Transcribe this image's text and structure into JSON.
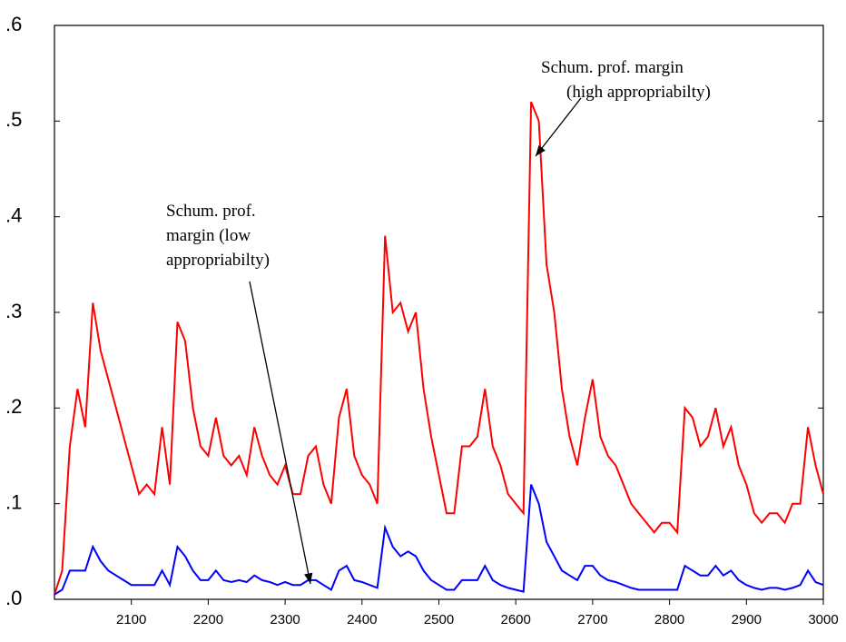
{
  "chart_data": {
    "type": "line",
    "x": [
      2000,
      2010,
      2020,
      2030,
      2040,
      2050,
      2060,
      2070,
      2080,
      2090,
      2100,
      2110,
      2120,
      2130,
      2140,
      2150,
      2160,
      2170,
      2180,
      2190,
      2200,
      2210,
      2220,
      2230,
      2240,
      2250,
      2260,
      2270,
      2280,
      2290,
      2300,
      2310,
      2320,
      2330,
      2340,
      2350,
      2360,
      2370,
      2380,
      2390,
      2400,
      2410,
      2420,
      2430,
      2440,
      2450,
      2460,
      2470,
      2480,
      2490,
      2500,
      2510,
      2520,
      2530,
      2540,
      2550,
      2560,
      2570,
      2580,
      2590,
      2600,
      2610,
      2620,
      2630,
      2640,
      2650,
      2660,
      2670,
      2680,
      2690,
      2700,
      2710,
      2720,
      2730,
      2740,
      2750,
      2760,
      2770,
      2780,
      2790,
      2800,
      2810,
      2820,
      2830,
      2840,
      2850,
      2860,
      2870,
      2880,
      2890,
      2900,
      2910,
      2920,
      2930,
      2940,
      2950,
      2960,
      2970,
      2980,
      2990,
      3000
    ],
    "series": [
      {
        "color": "#ff0000",
        "values": [
          0.005,
          0.03,
          0.16,
          0.22,
          0.18,
          0.31,
          0.26,
          0.23,
          0.2,
          0.17,
          0.14,
          0.11,
          0.12,
          0.11,
          0.18,
          0.12,
          0.29,
          0.27,
          0.2,
          0.16,
          0.15,
          0.19,
          0.15,
          0.14,
          0.15,
          0.13,
          0.18,
          0.15,
          0.13,
          0.12,
          0.14,
          0.11,
          0.11,
          0.15,
          0.16,
          0.12,
          0.1,
          0.19,
          0.22,
          0.15,
          0.13,
          0.12,
          0.1,
          0.38,
          0.3,
          0.31,
          0.28,
          0.3,
          0.22,
          0.17,
          0.13,
          0.09,
          0.09,
          0.16,
          0.16,
          0.17,
          0.22,
          0.16,
          0.14,
          0.11,
          0.1,
          0.09,
          0.52,
          0.5,
          0.35,
          0.3,
          0.22,
          0.17,
          0.14,
          0.19,
          0.23,
          0.17,
          0.15,
          0.14,
          0.12,
          0.1,
          0.09,
          0.08,
          0.07,
          0.08,
          0.08,
          0.07,
          0.2,
          0.19,
          0.16,
          0.17,
          0.2,
          0.16,
          0.18,
          0.14,
          0.12,
          0.09,
          0.08,
          0.09,
          0.09,
          0.08,
          0.1,
          0.1,
          0.18,
          0.14,
          0.11
        ]
      },
      {
        "color": "#0000ff",
        "values": [
          0.005,
          0.01,
          0.03,
          0.03,
          0.03,
          0.055,
          0.04,
          0.03,
          0.025,
          0.02,
          0.015,
          0.015,
          0.015,
          0.015,
          0.03,
          0.015,
          0.055,
          0.045,
          0.03,
          0.02,
          0.02,
          0.03,
          0.02,
          0.018,
          0.02,
          0.018,
          0.025,
          0.02,
          0.018,
          0.015,
          0.018,
          0.015,
          0.015,
          0.02,
          0.02,
          0.015,
          0.01,
          0.03,
          0.035,
          0.02,
          0.018,
          0.015,
          0.012,
          0.075,
          0.055,
          0.045,
          0.05,
          0.045,
          0.03,
          0.02,
          0.015,
          0.01,
          0.01,
          0.02,
          0.02,
          0.02,
          0.035,
          0.02,
          0.015,
          0.012,
          0.01,
          0.008,
          0.12,
          0.1,
          0.06,
          0.045,
          0.03,
          0.025,
          0.02,
          0.035,
          0.035,
          0.025,
          0.02,
          0.018,
          0.015,
          0.012,
          0.01,
          0.01,
          0.01,
          0.01,
          0.01,
          0.01,
          0.035,
          0.03,
          0.025,
          0.025,
          0.035,
          0.025,
          0.03,
          0.02,
          0.015,
          0.012,
          0.01,
          0.012,
          0.012,
          0.01,
          0.012,
          0.015,
          0.03,
          0.018,
          0.015
        ]
      }
    ],
    "xlim": [
      2000,
      3000
    ],
    "xticks": [
      2100,
      2200,
      2300,
      2400,
      2500,
      2600,
      2700,
      2800,
      2900,
      3000
    ],
    "ylim": [
      0,
      0.6
    ],
    "yticks": [
      {
        "value": 0,
        "label": ".0"
      },
      {
        "value": 0.1,
        "label": ".1"
      },
      {
        "value": 0.2,
        "label": ".2"
      },
      {
        "value": 0.3,
        "label": ".3"
      },
      {
        "value": 0.4,
        "label": ".4"
      },
      {
        "value": 0.5,
        "label": ".5"
      },
      {
        "value": 0.6,
        "label": ".6"
      }
    ],
    "annotations": [
      {
        "lines": [
          "Schum. prof. margin",
          "(high appropriabilty)"
        ]
      },
      {
        "lines": [
          "Schum. prof.",
          "margin (low",
          "appropriabilty)"
        ]
      }
    ]
  }
}
